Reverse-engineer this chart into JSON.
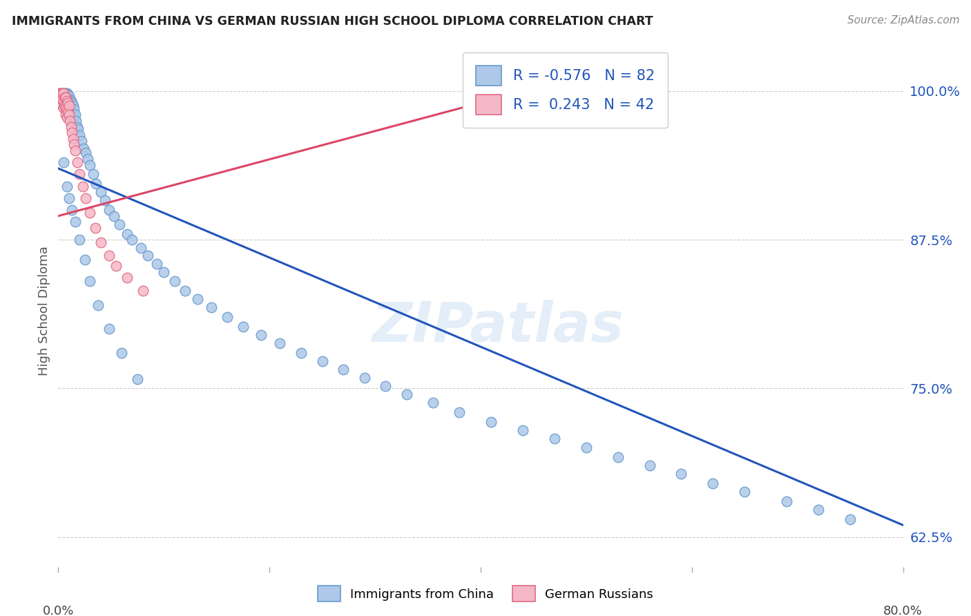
{
  "title": "IMMIGRANTS FROM CHINA VS GERMAN RUSSIAN HIGH SCHOOL DIPLOMA CORRELATION CHART",
  "source": "Source: ZipAtlas.com",
  "ylabel": "High School Diploma",
  "yticks": [
    0.625,
    0.75,
    0.875,
    1.0
  ],
  "ytick_labels": [
    "62.5%",
    "75.0%",
    "87.5%",
    "100.0%"
  ],
  "watermark": "ZIPatlas",
  "legend_china_R": "-0.576",
  "legend_china_N": "82",
  "legend_german_R": "0.243",
  "legend_german_N": "42",
  "china_color": "#adc8e8",
  "china_edge": "#6699cc",
  "german_color": "#f5b8c8",
  "german_edge": "#e06880",
  "trendline_china_color": "#2255bb",
  "trendline_german_color": "#dd4466",
  "china_trendline_x0": 0.0,
  "china_trendline_y0": 0.935,
  "china_trendline_x1": 0.8,
  "china_trendline_y1": 0.635,
  "german_trendline_x0": 0.0,
  "german_trendline_y0": 0.895,
  "german_trendline_x1": 0.42,
  "german_trendline_y1": 0.995,
  "china_scatter_x": [
    0.005,
    0.006,
    0.007,
    0.007,
    0.008,
    0.008,
    0.009,
    0.009,
    0.01,
    0.01,
    0.011,
    0.011,
    0.012,
    0.012,
    0.013,
    0.013,
    0.014,
    0.015,
    0.015,
    0.016,
    0.017,
    0.018,
    0.019,
    0.02,
    0.022,
    0.024,
    0.026,
    0.028,
    0.03,
    0.033,
    0.036,
    0.04,
    0.044,
    0.048,
    0.053,
    0.058,
    0.065,
    0.07,
    0.078,
    0.085,
    0.093,
    0.1,
    0.11,
    0.12,
    0.132,
    0.145,
    0.16,
    0.175,
    0.192,
    0.21,
    0.23,
    0.25,
    0.27,
    0.29,
    0.31,
    0.33,
    0.355,
    0.38,
    0.41,
    0.44,
    0.47,
    0.5,
    0.53,
    0.56,
    0.59,
    0.62,
    0.65,
    0.69,
    0.72,
    0.75,
    0.005,
    0.008,
    0.01,
    0.013,
    0.016,
    0.02,
    0.025,
    0.03,
    0.038,
    0.048,
    0.06,
    0.075
  ],
  "china_scatter_y": [
    0.998,
    0.998,
    0.998,
    0.995,
    0.998,
    0.993,
    0.997,
    0.99,
    0.996,
    0.988,
    0.993,
    0.986,
    0.992,
    0.983,
    0.99,
    0.98,
    0.988,
    0.985,
    0.978,
    0.98,
    0.975,
    0.97,
    0.968,
    0.963,
    0.958,
    0.952,
    0.948,
    0.943,
    0.938,
    0.93,
    0.922,
    0.915,
    0.908,
    0.9,
    0.895,
    0.888,
    0.88,
    0.875,
    0.868,
    0.862,
    0.855,
    0.848,
    0.84,
    0.832,
    0.825,
    0.818,
    0.81,
    0.802,
    0.795,
    0.788,
    0.78,
    0.773,
    0.766,
    0.759,
    0.752,
    0.745,
    0.738,
    0.73,
    0.722,
    0.715,
    0.708,
    0.7,
    0.692,
    0.685,
    0.678,
    0.67,
    0.663,
    0.655,
    0.648,
    0.64,
    0.94,
    0.92,
    0.91,
    0.9,
    0.89,
    0.875,
    0.858,
    0.84,
    0.82,
    0.8,
    0.78,
    0.758
  ],
  "german_scatter_x": [
    0.001,
    0.002,
    0.002,
    0.003,
    0.003,
    0.003,
    0.004,
    0.004,
    0.004,
    0.005,
    0.005,
    0.005,
    0.006,
    0.006,
    0.007,
    0.007,
    0.007,
    0.008,
    0.008,
    0.008,
    0.009,
    0.009,
    0.01,
    0.01,
    0.011,
    0.012,
    0.013,
    0.014,
    0.015,
    0.016,
    0.018,
    0.02,
    0.023,
    0.026,
    0.03,
    0.035,
    0.04,
    0.048,
    0.055,
    0.065,
    0.08,
    0.42
  ],
  "german_scatter_y": [
    0.998,
    0.998,
    0.995,
    0.998,
    0.994,
    0.99,
    0.998,
    0.993,
    0.988,
    0.998,
    0.992,
    0.986,
    0.995,
    0.988,
    0.995,
    0.986,
    0.98,
    0.992,
    0.984,
    0.978,
    0.99,
    0.982,
    0.988,
    0.98,
    0.975,
    0.97,
    0.965,
    0.96,
    0.955,
    0.95,
    0.94,
    0.93,
    0.92,
    0.91,
    0.898,
    0.885,
    0.873,
    0.862,
    0.853,
    0.843,
    0.832,
    0.998
  ],
  "xlim": [
    0.0,
    0.8
  ],
  "ylim": [
    0.6,
    1.03
  ],
  "background_color": "#ffffff",
  "grid_color": "#cccccc"
}
